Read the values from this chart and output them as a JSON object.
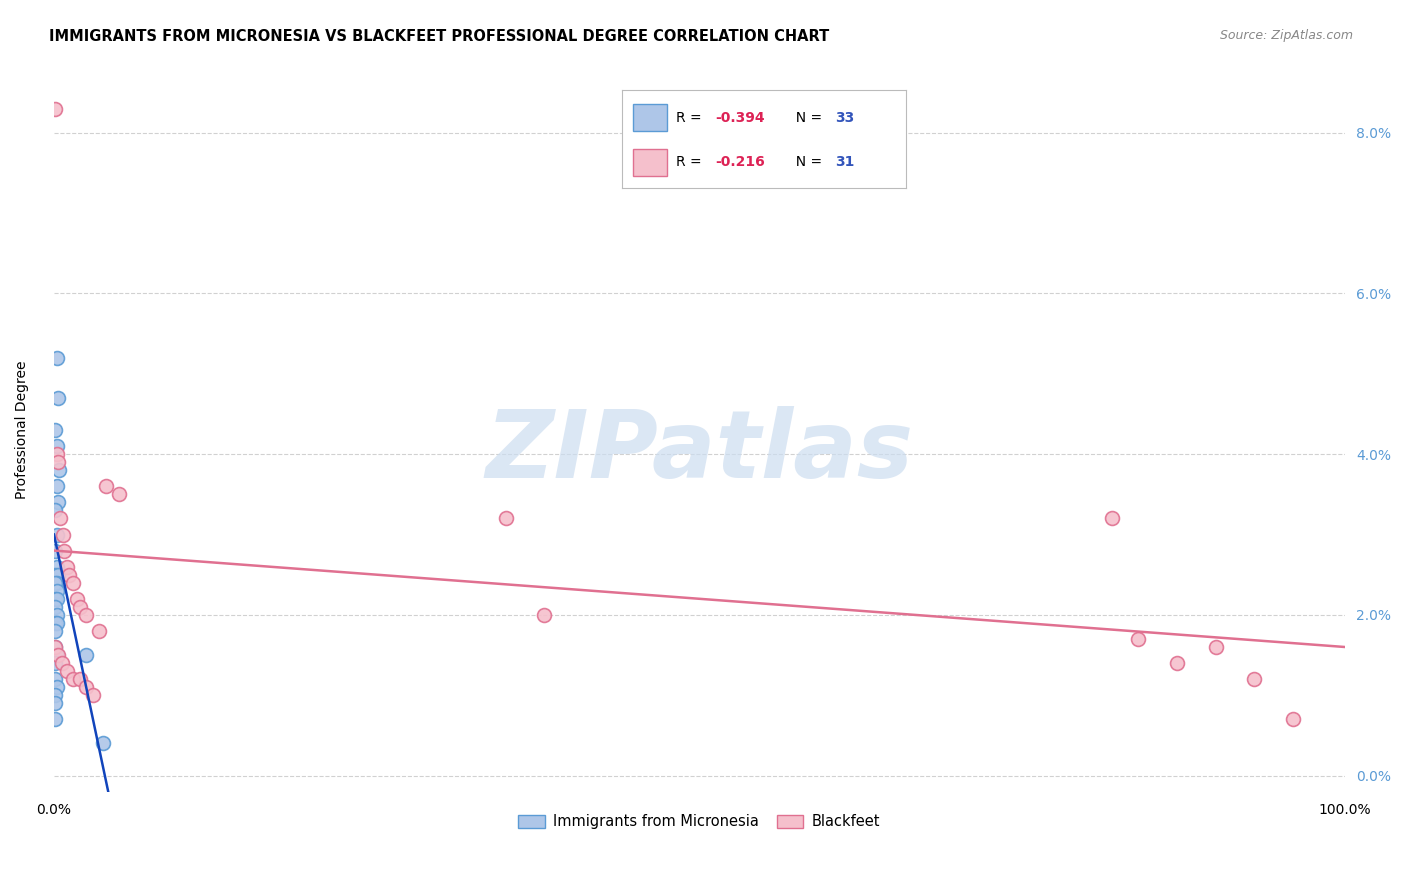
{
  "title": "IMMIGRANTS FROM MICRONESIA VS BLACKFEET PROFESSIONAL DEGREE CORRELATION CHART",
  "source": "Source: ZipAtlas.com",
  "ylabel": "Professional Degree",
  "xlim": [
    0,
    1.0
  ],
  "ylim": [
    -0.002,
    0.088
  ],
  "yticks": [
    0.0,
    0.02,
    0.04,
    0.06,
    0.08
  ],
  "ytick_labels_left": [
    "",
    "",
    "",
    "",
    ""
  ],
  "ytick_labels_right": [
    "0.0%",
    "2.0%",
    "4.0%",
    "6.0%",
    "8.0%"
  ],
  "xticks": [
    0.0,
    0.2,
    0.4,
    0.6,
    0.8,
    1.0
  ],
  "xtick_labels": [
    "0.0%",
    "",
    "",
    "",
    "",
    "100.0%"
  ],
  "series1_label": "Immigrants from Micronesia",
  "series1_color": "#aec6e8",
  "series1_edge_color": "#5b9bd5",
  "series1_R": "-0.394",
  "series1_N": "33",
  "series1_x": [
    0.002,
    0.003,
    0.001,
    0.002,
    0.004,
    0.002,
    0.003,
    0.001,
    0.002,
    0.001,
    0.002,
    0.001,
    0.003,
    0.002,
    0.001,
    0.002,
    0.001,
    0.002,
    0.001,
    0.002,
    0.001,
    0.002,
    0.001,
    0.001,
    0.002,
    0.001,
    0.001,
    0.002,
    0.001,
    0.001,
    0.025,
    0.001,
    0.038
  ],
  "series1_y": [
    0.052,
    0.047,
    0.043,
    0.041,
    0.038,
    0.036,
    0.034,
    0.033,
    0.03,
    0.028,
    0.026,
    0.025,
    0.025,
    0.024,
    0.024,
    0.023,
    0.022,
    0.022,
    0.021,
    0.02,
    0.019,
    0.019,
    0.018,
    0.016,
    0.015,
    0.014,
    0.012,
    0.011,
    0.01,
    0.009,
    0.015,
    0.007,
    0.004
  ],
  "series1_trend_x": [
    0.0,
    0.042
  ],
  "series1_trend_y": [
    0.03,
    -0.002
  ],
  "series2_label": "Blackfeet",
  "series2_color": "#f5c0cc",
  "series2_edge_color": "#e07090",
  "series2_R": "-0.216",
  "series2_N": "31",
  "series2_x": [
    0.001,
    0.002,
    0.003,
    0.005,
    0.007,
    0.008,
    0.01,
    0.012,
    0.015,
    0.018,
    0.02,
    0.025,
    0.001,
    0.003,
    0.006,
    0.01,
    0.015,
    0.02,
    0.025,
    0.03,
    0.035,
    0.04,
    0.05,
    0.35,
    0.38,
    0.82,
    0.84,
    0.87,
    0.9,
    0.93,
    0.96
  ],
  "series2_y": [
    0.083,
    0.04,
    0.039,
    0.032,
    0.03,
    0.028,
    0.026,
    0.025,
    0.024,
    0.022,
    0.021,
    0.02,
    0.016,
    0.015,
    0.014,
    0.013,
    0.012,
    0.012,
    0.011,
    0.01,
    0.018,
    0.036,
    0.035,
    0.032,
    0.02,
    0.032,
    0.017,
    0.014,
    0.016,
    0.012,
    0.007
  ],
  "series2_trend_x": [
    0.0,
    1.0
  ],
  "series2_trend_y": [
    0.028,
    0.016
  ],
  "legend_R_color": "#dd2255",
  "legend_N_color": "#3355bb",
  "marker_size": 100,
  "trend_line1_color": "#1144bb",
  "trend_line2_color": "#e07090",
  "background_color": "#ffffff",
  "grid_color": "#cccccc",
  "title_fontsize": 10.5,
  "tick_label_color_right": "#5b9bd5",
  "watermark_text": "ZIPatlas",
  "watermark_color": "#ccddf0"
}
